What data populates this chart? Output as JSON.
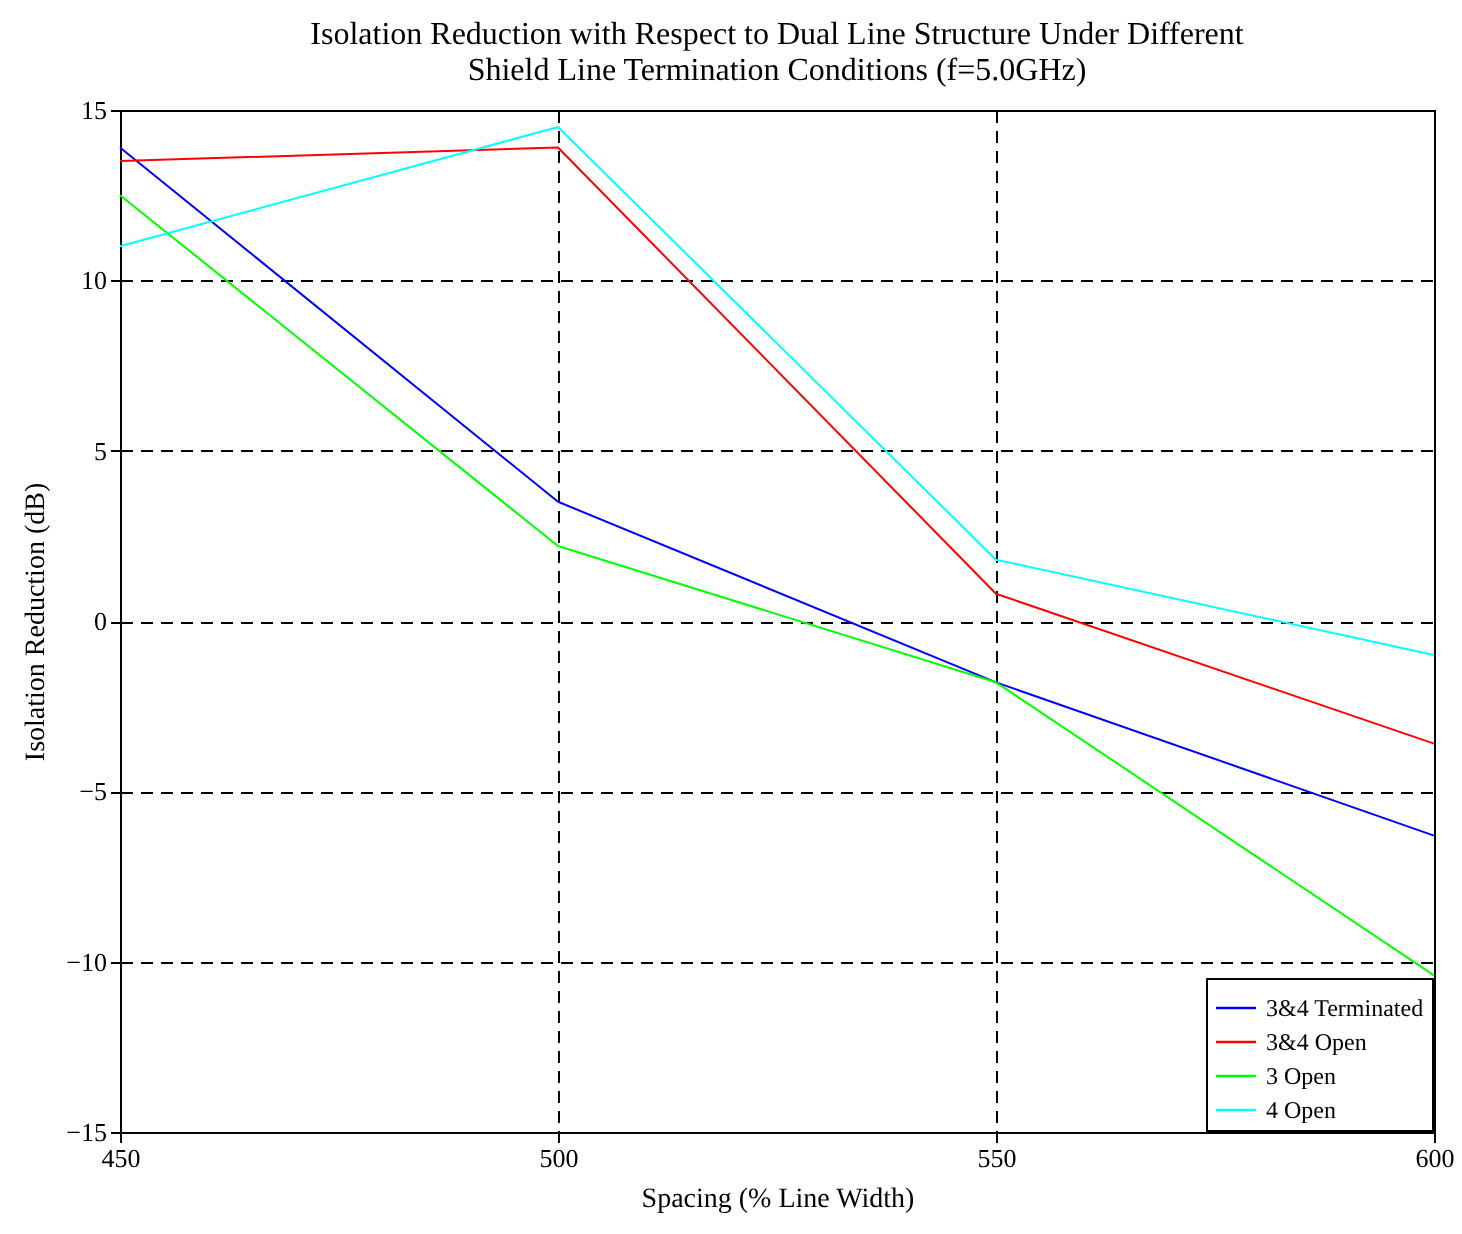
{
  "chart_data": {
    "type": "line",
    "title": [
      "Isolation Reduction with Respect to Dual Line Structure Under Different",
      "Shield Line Termination Conditions (f=5.0GHz)"
    ],
    "xlabel": "Spacing (% Line Width)",
    "ylabel": "Isolation Reduction (dB)",
    "x": [
      450,
      500,
      550,
      600
    ],
    "xlim": [
      450,
      600
    ],
    "xticks": [
      450,
      500,
      550,
      600
    ],
    "ylim": [
      -15,
      15
    ],
    "yticks": [
      -15,
      -10,
      -5,
      0,
      5,
      10,
      15
    ],
    "grid": true,
    "legend": "bottom right",
    "line_style": "solid",
    "series": [
      {
        "name": "3&4 Terminated",
        "color": "#0000ff",
        "values": [
          13.9,
          3.5,
          -1.8,
          -6.3
        ]
      },
      {
        "name": "3&4 Open",
        "color": "#ff0000",
        "values": [
          13.5,
          13.9,
          0.8,
          -3.6
        ]
      },
      {
        "name": "3 Open",
        "color": "#00ff00",
        "values": [
          12.5,
          2.2,
          -1.8,
          -10.4
        ]
      },
      {
        "name": "4 Open",
        "color": "#00ffff",
        "values": [
          11.0,
          14.5,
          1.8,
          -1.0
        ]
      }
    ]
  }
}
